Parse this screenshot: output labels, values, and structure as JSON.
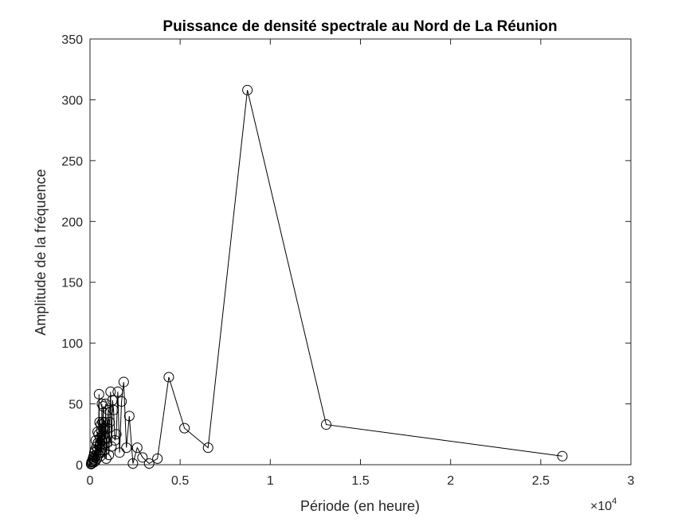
{
  "chart_data": {
    "type": "line",
    "title": "Puissance de densité spectrale au Nord de La Réunion",
    "xlabel": "Période (en heure)",
    "ylabel": "Amplitude de la fréquence",
    "xlim": [
      0,
      3
    ],
    "ylim": [
      0,
      350
    ],
    "x_multiplier_label": "×10",
    "x_multiplier_exponent": "4",
    "xticks": [
      "0",
      "0.5",
      "1",
      "1.5",
      "2",
      "2.5",
      "3"
    ],
    "yticks": [
      "0",
      "50",
      "100",
      "150",
      "200",
      "250",
      "300",
      "350"
    ],
    "grid": false,
    "marker": "circle",
    "line_color": "#000000",
    "series": [
      {
        "x": [
          2.62,
          1.31,
          0.873,
          0.655,
          0.524,
          0.437,
          0.374,
          0.328,
          0.291,
          0.262,
          0.238,
          0.218,
          0.202,
          0.187,
          0.175,
          0.164,
          0.154,
          0.146,
          0.138,
          0.131,
          0.125,
          0.119,
          0.114,
          0.109,
          0.105,
          0.101,
          0.097,
          0.094,
          0.09,
          0.087,
          0.085,
          0.082,
          0.079,
          0.077,
          0.075,
          0.073,
          0.071,
          0.069,
          0.067,
          0.066,
          0.064,
          0.062,
          0.061,
          0.06,
          0.058,
          0.057,
          0.056,
          0.055,
          0.053,
          0.052,
          0.05,
          0.048,
          0.046,
          0.044,
          0.042,
          0.04,
          0.038,
          0.036,
          0.034,
          0.032,
          0.03,
          0.028,
          0.026,
          0.024,
          0.022,
          0.02,
          0.018,
          0.016,
          0.014,
          0.012,
          0.01,
          0.008,
          0.006
        ],
        "y": [
          7,
          33,
          308,
          14,
          30,
          72,
          5,
          1,
          6,
          14,
          1,
          40,
          14,
          68,
          52,
          10,
          60,
          25,
          20,
          45,
          53,
          15,
          60,
          35,
          8,
          45,
          30,
          18,
          5,
          50,
          22,
          35,
          12,
          25,
          30,
          48,
          15,
          35,
          20,
          50,
          10,
          28,
          12,
          33,
          7,
          18,
          22,
          10,
          35,
          15,
          58,
          25,
          8,
          18,
          27,
          12,
          5,
          15,
          8,
          20,
          3,
          12,
          6,
          10,
          2,
          7,
          4,
          5,
          2,
          3,
          1,
          2,
          0.5
        ]
      }
    ]
  }
}
